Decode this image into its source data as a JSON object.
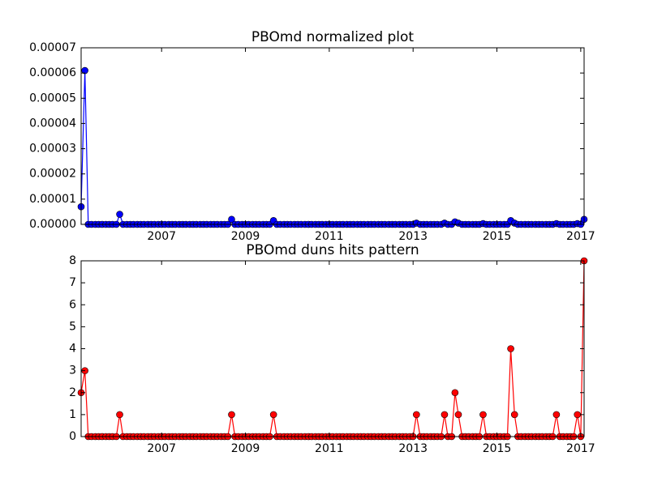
{
  "chart_data": [
    {
      "type": "line",
      "title": "PBOmd normalized plot",
      "color": "#0000ff",
      "x": [
        2005.08,
        2005.17,
        2005.25,
        2005.33,
        2005.42,
        2005.5,
        2005.58,
        2005.67,
        2005.75,
        2005.83,
        2005.92,
        2006.0,
        2006.08,
        2006.17,
        2006.25,
        2006.33,
        2006.42,
        2006.5,
        2006.58,
        2006.67,
        2006.75,
        2006.83,
        2006.92,
        2007.0,
        2007.08,
        2007.17,
        2007.25,
        2007.33,
        2007.42,
        2007.5,
        2007.58,
        2007.67,
        2007.75,
        2007.83,
        2007.92,
        2008.0,
        2008.08,
        2008.17,
        2008.25,
        2008.33,
        2008.42,
        2008.5,
        2008.58,
        2008.67,
        2008.75,
        2008.83,
        2008.92,
        2009.0,
        2009.08,
        2009.17,
        2009.25,
        2009.33,
        2009.42,
        2009.5,
        2009.58,
        2009.67,
        2009.75,
        2009.83,
        2009.92,
        2010.0,
        2010.08,
        2010.17,
        2010.25,
        2010.33,
        2010.42,
        2010.5,
        2010.58,
        2010.67,
        2010.75,
        2010.83,
        2010.92,
        2011.0,
        2011.08,
        2011.17,
        2011.25,
        2011.33,
        2011.42,
        2011.5,
        2011.58,
        2011.67,
        2011.75,
        2011.83,
        2011.92,
        2012.0,
        2012.08,
        2012.17,
        2012.25,
        2012.33,
        2012.42,
        2012.5,
        2012.58,
        2012.67,
        2012.75,
        2012.83,
        2012.92,
        2013.0,
        2013.08,
        2013.17,
        2013.25,
        2013.33,
        2013.42,
        2013.5,
        2013.58,
        2013.67,
        2013.75,
        2013.83,
        2013.92,
        2014.0,
        2014.08,
        2014.17,
        2014.25,
        2014.33,
        2014.42,
        2014.5,
        2014.58,
        2014.67,
        2014.75,
        2014.83,
        2014.92,
        2015.0,
        2015.08,
        2015.17,
        2015.25,
        2015.33,
        2015.42,
        2015.5,
        2015.58,
        2015.67,
        2015.75,
        2015.83,
        2015.92,
        2016.0,
        2016.08,
        2016.17,
        2016.25,
        2016.33,
        2016.42,
        2016.5,
        2016.58,
        2016.67,
        2016.75,
        2016.83,
        2016.92,
        2017.0,
        2017.08
      ],
      "values": [
        7e-06,
        6.1e-05,
        0,
        0,
        0,
        0,
        0,
        0,
        0,
        0,
        0,
        4e-06,
        0,
        0,
        0,
        0,
        0,
        0,
        0,
        0,
        0,
        0,
        0,
        0,
        0,
        0,
        0,
        0,
        0,
        0,
        0,
        0,
        0,
        0,
        0,
        0,
        0,
        0,
        0,
        0,
        0,
        0,
        0,
        2e-06,
        0,
        0,
        0,
        0,
        0,
        0,
        0,
        0,
        0,
        0,
        0,
        1.5e-06,
        0,
        0,
        0,
        0,
        0,
        0,
        0,
        0,
        0,
        0,
        0,
        0,
        0,
        0,
        0,
        0,
        0,
        0,
        0,
        0,
        0,
        0,
        0,
        0,
        0,
        0,
        0,
        0,
        0,
        0,
        0,
        0,
        0,
        0,
        0,
        0,
        0,
        0,
        0,
        0,
        5e-07,
        0,
        0,
        0,
        0,
        0,
        0,
        0,
        5e-07,
        0,
        0,
        1e-06,
        5e-07,
        0,
        0,
        0,
        0,
        0,
        0,
        3e-07,
        0,
        0,
        0,
        0,
        0,
        0,
        0,
        1.5e-06,
        5e-07,
        0,
        0,
        0,
        0,
        0,
        0,
        0,
        0,
        0,
        0,
        0,
        3e-07,
        0,
        0,
        0,
        0,
        0,
        3e-07,
        0,
        2e-06
      ],
      "xlim": [
        2005.08,
        2017.08
      ],
      "xticks": [
        2007,
        2009,
        2011,
        2013,
        2015,
        2017
      ],
      "ylim": [
        0,
        7e-05
      ],
      "yticks": [
        {
          "value": 0,
          "label": "0.00000"
        },
        1e-05,
        2e-05,
        3e-05,
        4e-05,
        5e-05,
        6e-05,
        7e-05
      ]
    },
    {
      "type": "line",
      "title": "PBOmd duns hits pattern",
      "color": "#ff0000",
      "x": [
        2005.08,
        2005.17,
        2005.25,
        2005.33,
        2005.42,
        2005.5,
        2005.58,
        2005.67,
        2005.75,
        2005.83,
        2005.92,
        2006.0,
        2006.08,
        2006.17,
        2006.25,
        2006.33,
        2006.42,
        2006.5,
        2006.58,
        2006.67,
        2006.75,
        2006.83,
        2006.92,
        2007.0,
        2007.08,
        2007.17,
        2007.25,
        2007.33,
        2007.42,
        2007.5,
        2007.58,
        2007.67,
        2007.75,
        2007.83,
        2007.92,
        2008.0,
        2008.08,
        2008.17,
        2008.25,
        2008.33,
        2008.42,
        2008.5,
        2008.58,
        2008.67,
        2008.75,
        2008.83,
        2008.92,
        2009.0,
        2009.08,
        2009.17,
        2009.25,
        2009.33,
        2009.42,
        2009.5,
        2009.58,
        2009.67,
        2009.75,
        2009.83,
        2009.92,
        2010.0,
        2010.08,
        2010.17,
        2010.25,
        2010.33,
        2010.42,
        2010.5,
        2010.58,
        2010.67,
        2010.75,
        2010.83,
        2010.92,
        2011.0,
        2011.08,
        2011.17,
        2011.25,
        2011.33,
        2011.42,
        2011.5,
        2011.58,
        2011.67,
        2011.75,
        2011.83,
        2011.92,
        2012.0,
        2012.08,
        2012.17,
        2012.25,
        2012.33,
        2012.42,
        2012.5,
        2012.58,
        2012.67,
        2012.75,
        2012.83,
        2012.92,
        2013.0,
        2013.08,
        2013.17,
        2013.25,
        2013.33,
        2013.42,
        2013.5,
        2013.58,
        2013.67,
        2013.75,
        2013.83,
        2013.92,
        2014.0,
        2014.08,
        2014.17,
        2014.25,
        2014.33,
        2014.42,
        2014.5,
        2014.58,
        2014.67,
        2014.75,
        2014.83,
        2014.92,
        2015.0,
        2015.08,
        2015.17,
        2015.25,
        2015.33,
        2015.42,
        2015.5,
        2015.58,
        2015.67,
        2015.75,
        2015.83,
        2015.92,
        2016.0,
        2016.08,
        2016.17,
        2016.25,
        2016.33,
        2016.42,
        2016.5,
        2016.58,
        2016.67,
        2016.75,
        2016.83,
        2016.92,
        2017.0,
        2017.08
      ],
      "values": [
        2,
        3,
        0,
        0,
        0,
        0,
        0,
        0,
        0,
        0,
        0,
        1,
        0,
        0,
        0,
        0,
        0,
        0,
        0,
        0,
        0,
        0,
        0,
        0,
        0,
        0,
        0,
        0,
        0,
        0,
        0,
        0,
        0,
        0,
        0,
        0,
        0,
        0,
        0,
        0,
        0,
        0,
        0,
        1,
        0,
        0,
        0,
        0,
        0,
        0,
        0,
        0,
        0,
        0,
        0,
        1,
        0,
        0,
        0,
        0,
        0,
        0,
        0,
        0,
        0,
        0,
        0,
        0,
        0,
        0,
        0,
        0,
        0,
        0,
        0,
        0,
        0,
        0,
        0,
        0,
        0,
        0,
        0,
        0,
        0,
        0,
        0,
        0,
        0,
        0,
        0,
        0,
        0,
        0,
        0,
        0,
        1,
        0,
        0,
        0,
        0,
        0,
        0,
        0,
        1,
        0,
        0,
        2,
        1,
        0,
        0,
        0,
        0,
        0,
        0,
        1,
        0,
        0,
        0,
        0,
        0,
        0,
        0,
        4,
        1,
        0,
        0,
        0,
        0,
        0,
        0,
        0,
        0,
        0,
        0,
        0,
        1,
        0,
        0,
        0,
        0,
        0,
        1,
        0,
        8
      ],
      "xlim": [
        2005.08,
        2017.08
      ],
      "xticks": [
        2007,
        2009,
        2011,
        2013,
        2015,
        2017
      ],
      "ylim": [
        0,
        8
      ],
      "yticks": [
        0,
        1,
        2,
        3,
        4,
        5,
        6,
        7,
        8
      ]
    }
  ]
}
